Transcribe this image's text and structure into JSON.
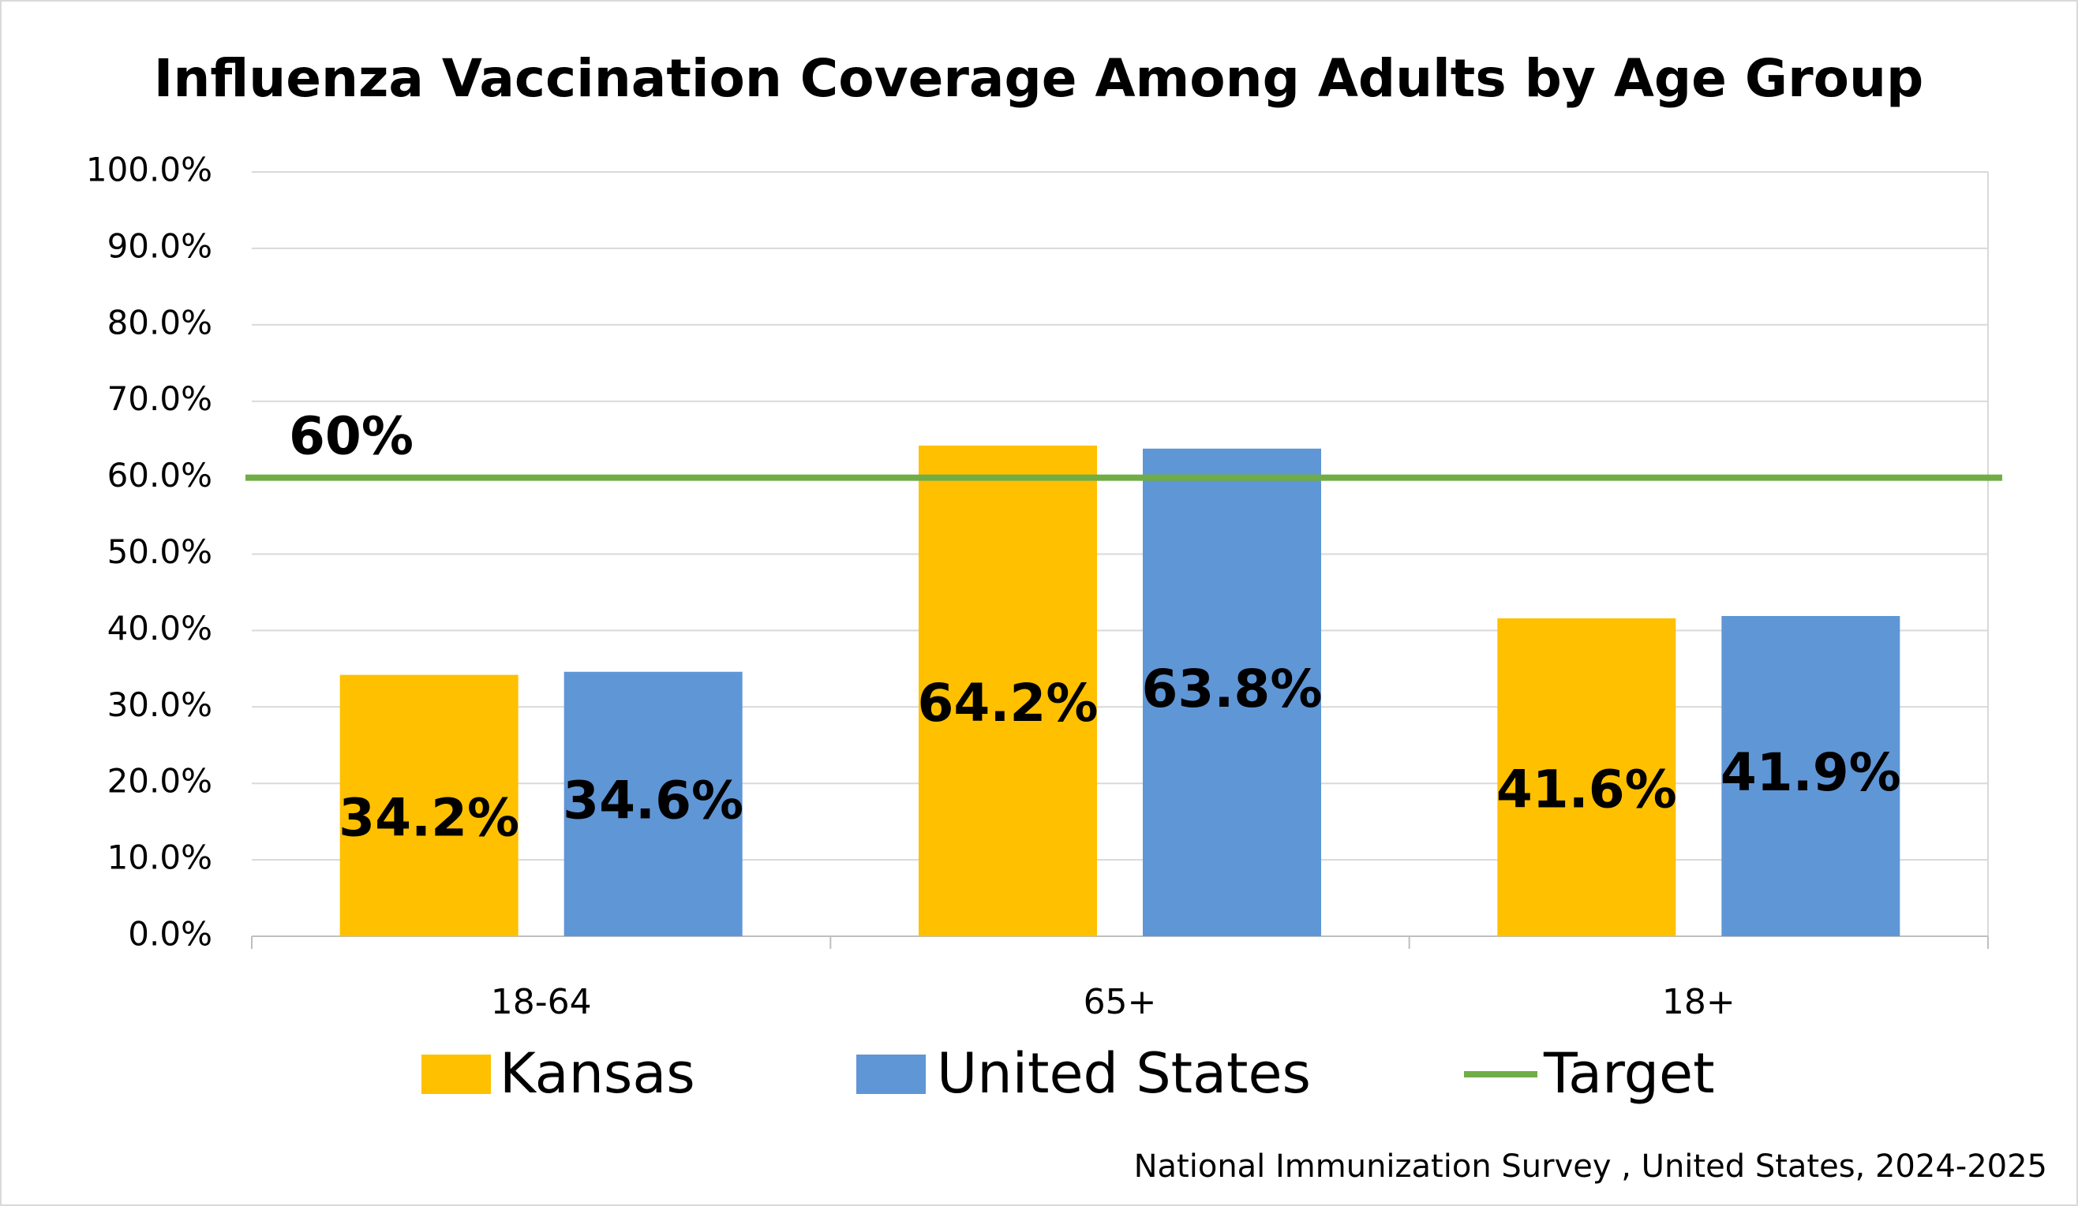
{
  "chart_data": {
    "type": "bar",
    "title": "Influenza Vaccination Coverage Among Adults by Age Group",
    "categories": [
      "18-64",
      "65+",
      "18+"
    ],
    "series": [
      {
        "name": "Kansas",
        "color": "#ffc000",
        "values": [
          34.2,
          64.2,
          41.6
        ],
        "value_labels": [
          "34.2%",
          "64.2%",
          "41.6%"
        ]
      },
      {
        "name": "United States",
        "color": "#5f96d6",
        "values": [
          34.6,
          63.8,
          41.9
        ],
        "value_labels": [
          "34.6%",
          "63.8%",
          "41.9%"
        ]
      },
      {
        "name": "Target",
        "type": "line",
        "color": "#70ad47",
        "values": [
          60,
          60,
          60
        ]
      }
    ],
    "annotations": [
      {
        "text": "60%",
        "value": 60
      }
    ],
    "ylim": [
      0,
      100
    ],
    "yticks": [
      {
        "value": 0,
        "label": "0.0%"
      },
      {
        "value": 10,
        "label": "10.0%"
      },
      {
        "value": 20,
        "label": "20.0%"
      },
      {
        "value": 30,
        "label": "30.0%"
      },
      {
        "value": 40,
        "label": "40.0%"
      },
      {
        "value": 50,
        "label": "50.0%"
      },
      {
        "value": 60,
        "label": "60.0%"
      },
      {
        "value": 70,
        "label": "70.0%"
      },
      {
        "value": 80,
        "label": "80.0%"
      },
      {
        "value": 90,
        "label": "90.0%"
      },
      {
        "value": 100,
        "label": "100.0%"
      }
    ],
    "grid": true,
    "legend": "bottom",
    "source": "National Immunization Survey , United States, 2024-2025"
  }
}
